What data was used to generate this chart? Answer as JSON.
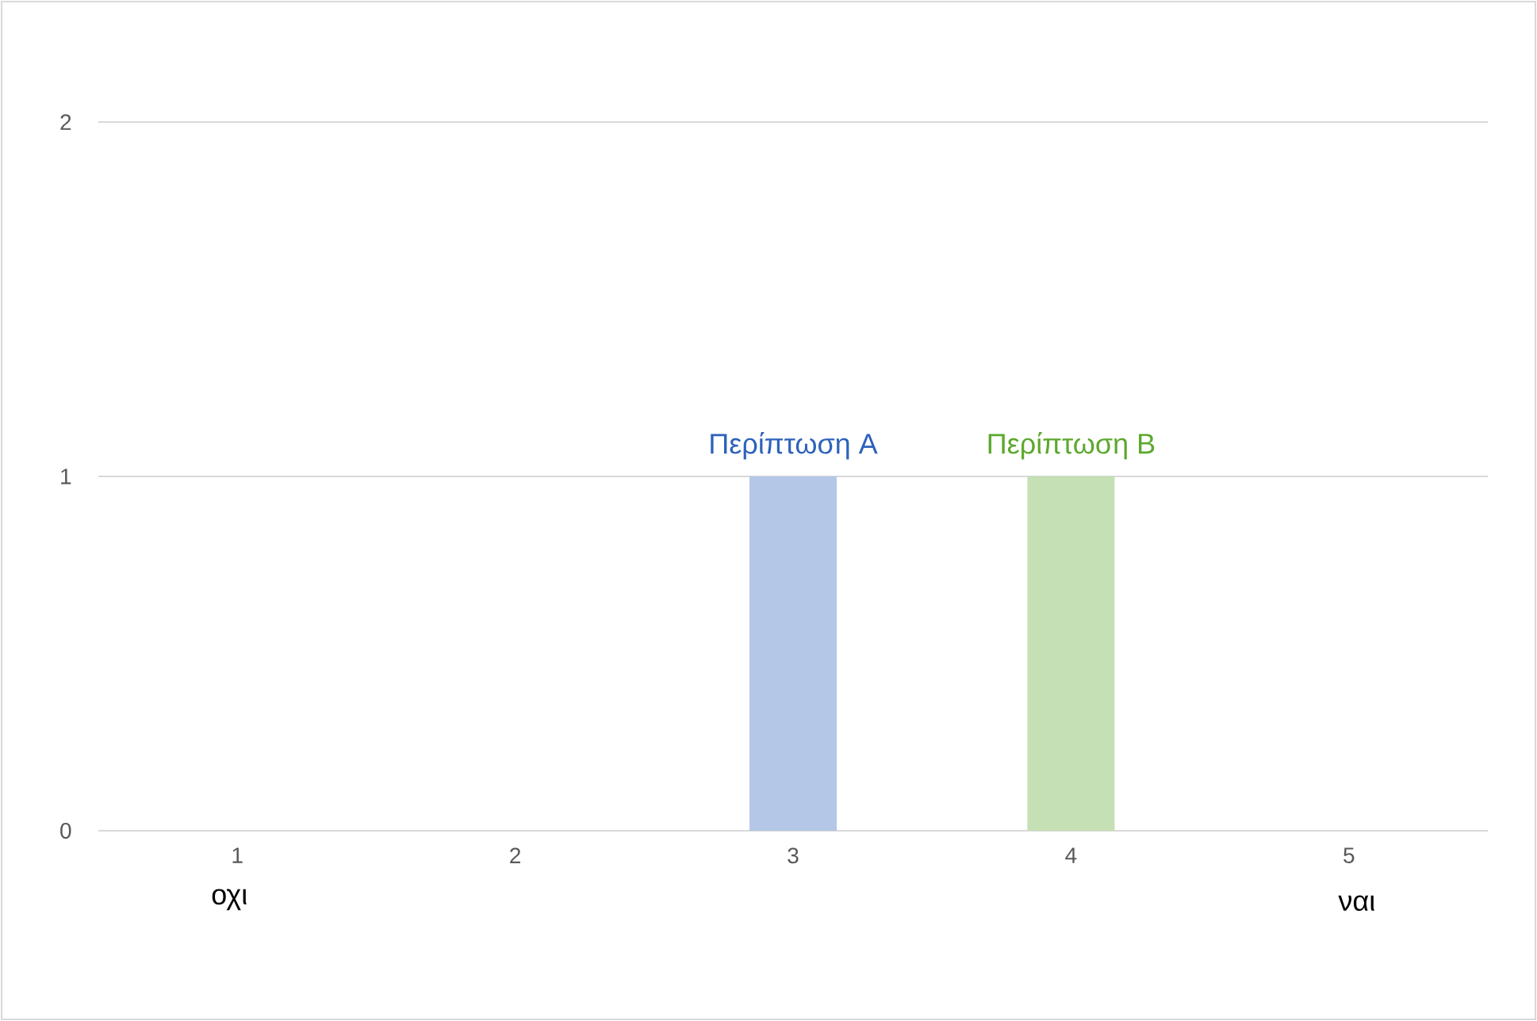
{
  "chart_data": {
    "type": "bar",
    "categories": [
      "1",
      "2",
      "3",
      "4",
      "5"
    ],
    "values": [
      0,
      0,
      1,
      1,
      0
    ],
    "colors": [
      "#b4c7e7",
      "#b4c7e7",
      "#b4c7e7",
      "#c5e0b4",
      "#c5e0b4"
    ],
    "ylim": [
      0,
      2
    ],
    "yticks": [
      0,
      1,
      2
    ],
    "grid": "y",
    "annotations": [
      {
        "text": "Περίπτωση A",
        "x": "3",
        "y": 1
      },
      {
        "text": "Περίπτωση B",
        "x": "4",
        "y": 1
      },
      "οχι",
      "ναι"
    ]
  }
}
